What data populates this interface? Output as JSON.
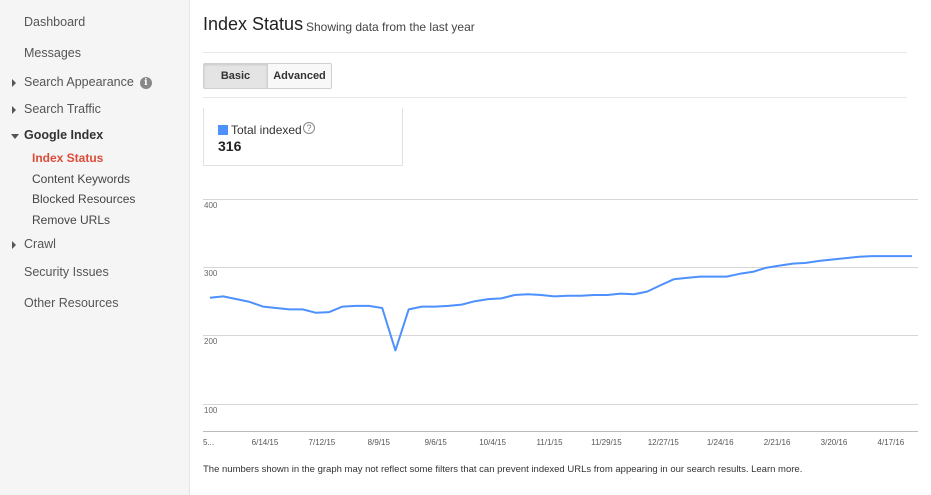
{
  "sidebar": {
    "items": [
      {
        "label": "Dashboard"
      },
      {
        "label": "Messages"
      },
      {
        "label": "Search Appearance"
      },
      {
        "label": "Search Traffic"
      },
      {
        "label": "Google Index"
      },
      {
        "label": "Crawl"
      },
      {
        "label": "Security Issues"
      },
      {
        "label": "Other Resources"
      }
    ],
    "info_icon_glyph": "i",
    "sub_items": [
      {
        "label": "Index Status"
      },
      {
        "label": "Content Keywords"
      },
      {
        "label": "Blocked Resources"
      },
      {
        "label": "Remove URLs"
      }
    ]
  },
  "header": {
    "title": "Index Status",
    "subtitle": "Showing data from the last year"
  },
  "tabs": {
    "basic": "Basic",
    "advanced": "Advanced"
  },
  "metric": {
    "label": "Total indexed",
    "help_glyph": "?",
    "value": "316",
    "color": "#4d90fe"
  },
  "chart_data": {
    "type": "line",
    "title": "",
    "xlabel": "",
    "ylabel": "",
    "y_ticks": [
      "400",
      "300",
      "200",
      "100"
    ],
    "x_tick_labels": [
      "5...",
      "6/14/15",
      "7/12/15",
      "8/9/15",
      "9/6/15",
      "10/4/15",
      "11/1/15",
      "11/29/15",
      "12/27/15",
      "1/24/16",
      "2/21/16",
      "3/20/16",
      "4/17/16"
    ],
    "ylim": [
      60,
      420
    ],
    "grid": true,
    "series": [
      {
        "color": "#4d90fe",
        "x": [
          0,
          1,
          2,
          3,
          4,
          5,
          6,
          7,
          8,
          9,
          10,
          11,
          12,
          13,
          14,
          15,
          16,
          17,
          18,
          19,
          20,
          21,
          22,
          23,
          24,
          25,
          26,
          27,
          28,
          29,
          30,
          31,
          32,
          33,
          34,
          35,
          36,
          37,
          38,
          39,
          40,
          41,
          42,
          43,
          44,
          45,
          46,
          47,
          48,
          49,
          50,
          51,
          52,
          53
        ],
        "values": [
          255,
          257,
          253,
          249,
          242,
          240,
          238,
          238,
          233,
          234,
          242,
          243,
          243,
          240,
          178,
          238,
          242,
          242,
          243,
          245,
          250,
          253,
          254,
          259,
          260,
          259,
          257,
          258,
          258,
          259,
          259,
          261,
          260,
          264,
          273,
          282,
          284,
          286,
          286,
          286,
          290,
          293,
          299,
          302,
          305,
          306,
          309,
          311,
          313,
          315,
          316,
          316,
          316,
          316
        ]
      }
    ]
  },
  "footer": {
    "note": "The numbers shown in the graph may not reflect some filters that can prevent indexed URLs from appearing in our search results.",
    "link": "Learn more."
  }
}
